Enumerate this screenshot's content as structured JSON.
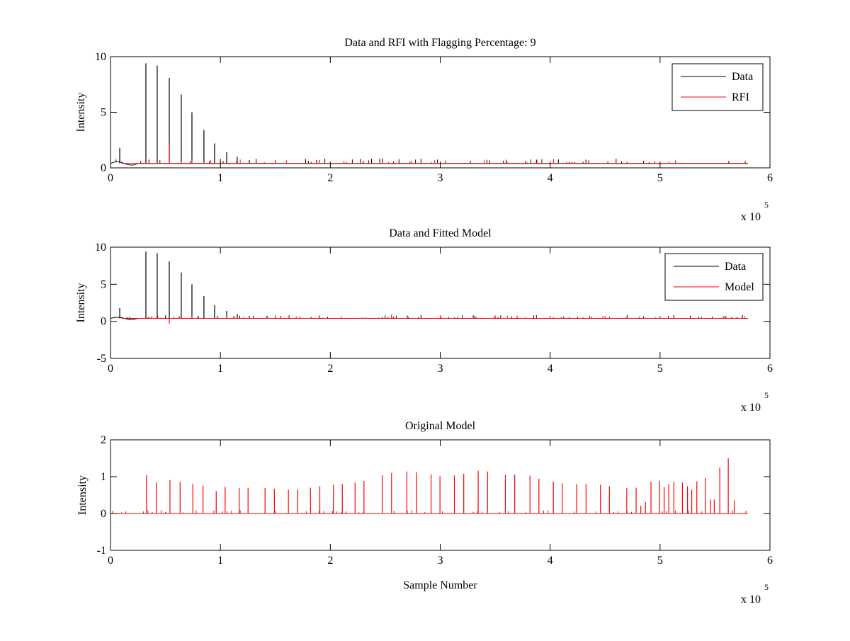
{
  "chart_data": [
    {
      "type": "line",
      "title": "Data and RFI with Flagging Percentage: 9",
      "xlabel": "",
      "ylabel": "Intensity",
      "xlim": [
        0,
        600000
      ],
      "ylim": [
        0,
        10
      ],
      "xticks": [
        "0",
        "1",
        "2",
        "3",
        "4",
        "5",
        "6"
      ],
      "yticks": [
        "0",
        "5",
        "10"
      ],
      "ytick_values": [
        0,
        5,
        10
      ],
      "x_multiplier": "x 10",
      "x_multiplier_exp": "5",
      "legend": {
        "placement": "top-right",
        "entries": [
          {
            "label": "Data",
            "color": "#000000"
          },
          {
            "label": "RFI",
            "color": "#ff0000"
          }
        ]
      },
      "baseline": 0.4,
      "x_end": 580000,
      "series": [
        {
          "name": "Data",
          "color": "#000000",
          "spikes": [
            [
              8400,
              1.8
            ],
            [
              32200,
              9.4
            ],
            [
              42500,
              9.2
            ],
            [
              53500,
              8.1
            ],
            [
              64400,
              6.6
            ],
            [
              74100,
              5.0
            ],
            [
              85000,
              3.4
            ],
            [
              94700,
              2.2
            ],
            [
              105700,
              1.4
            ],
            [
              115300,
              1.0
            ],
            [
              126300,
              0.7
            ]
          ]
        },
        {
          "name": "RFI",
          "color": "#ff0000",
          "spikes": [
            [
              53500,
              2.2
            ],
            [
              64400,
              0.6
            ],
            [
              74100,
              0.8
            ],
            [
              150000,
              0.7
            ],
            [
              140000,
              0.5
            ]
          ]
        }
      ]
    },
    {
      "type": "line",
      "title": "Data and Fitted Model",
      "xlabel": "",
      "ylabel": "Intensity",
      "xlim": [
        0,
        600000
      ],
      "ylim": [
        -5,
        10
      ],
      "xticks": [
        "0",
        "1",
        "2",
        "3",
        "4",
        "5",
        "6"
      ],
      "yticks": [
        "-5",
        "0",
        "5",
        "10"
      ],
      "ytick_values": [
        -5,
        0,
        5,
        10
      ],
      "x_multiplier": "x 10",
      "x_multiplier_exp": "5",
      "legend": {
        "placement": "top-right",
        "entries": [
          {
            "label": "Data",
            "color": "#000000"
          },
          {
            "label": "Model",
            "color": "#ff0000"
          }
        ]
      },
      "baseline": 0.4,
      "x_end": 580000,
      "series": [
        {
          "name": "Data",
          "color": "#000000",
          "spikes": [
            [
              8400,
              1.8
            ],
            [
              32200,
              9.4
            ],
            [
              42500,
              9.2
            ],
            [
              53500,
              8.1
            ],
            [
              64400,
              6.6
            ],
            [
              74100,
              5.0
            ],
            [
              85000,
              3.4
            ],
            [
              94700,
              2.2
            ],
            [
              105700,
              1.4
            ],
            [
              115300,
              1.0
            ],
            [
              126300,
              0.7
            ]
          ]
        },
        {
          "name": "Model",
          "color": "#ff0000",
          "spikes": [
            [
              53500,
              -0.3
            ],
            [
              74100,
              0.8
            ],
            [
              105700,
              0.8
            ],
            [
              150000,
              0.8
            ],
            [
              190000,
              0.8
            ],
            [
              255700,
              0.9
            ],
            [
              300000,
              0.8
            ],
            [
              350000,
              0.8
            ],
            [
              400000,
              0.7
            ],
            [
              450000,
              0.7
            ],
            [
              500000,
              0.7
            ],
            [
              560000,
              0.7
            ]
          ]
        }
      ]
    },
    {
      "type": "line",
      "title": "Original Model",
      "xlabel": "Sample Number",
      "ylabel": "Intensity",
      "xlim": [
        0,
        600000
      ],
      "ylim": [
        -1,
        2
      ],
      "xticks": [
        "0",
        "1",
        "2",
        "3",
        "4",
        "5",
        "6"
      ],
      "yticks": [
        "-1",
        "0",
        "1",
        "2"
      ],
      "ytick_values": [
        -1,
        0,
        1,
        2
      ],
      "x_multiplier": "x 10",
      "x_multiplier_exp": "5",
      "baseline": 0,
      "x_end": 580000,
      "series": [
        {
          "name": "Model",
          "color": "#ff0000",
          "spikes": [
            [
              32800,
              1.04
            ],
            [
              41700,
              0.84
            ],
            [
              54100,
              0.91
            ],
            [
              63350,
              0.86
            ],
            [
              74940,
              0.8
            ],
            [
              84210,
              0.76
            ],
            [
              96190,
              0.61
            ],
            [
              104300,
              0.72
            ],
            [
              117050,
              0.69
            ],
            [
              125160,
              0.7
            ],
            [
              140610,
              0.69
            ],
            [
              149110,
              0.67
            ],
            [
              161860,
              0.65
            ],
            [
              170360,
              0.65
            ],
            [
              181950,
              0.7
            ],
            [
              190450,
              0.74
            ],
            [
              202810,
              0.78
            ],
            [
              210920,
              0.8
            ],
            [
              222510,
              0.84
            ],
            [
              230620,
              0.89
            ],
            [
              247230,
              1.04
            ],
            [
              255730,
              1.1
            ],
            [
              269640,
              1.14
            ],
            [
              278520,
              1.12
            ],
            [
              291660,
              1.06
            ],
            [
              299770,
              1.01
            ],
            [
              312900,
              1.03
            ],
            [
              321400,
              1.08
            ],
            [
              334530,
              1.16
            ],
            [
              343040,
              1.14
            ],
            [
              359260,
              1.06
            ],
            [
              367760,
              1.06
            ],
            [
              381670,
              1.03
            ],
            [
              389780,
              0.95
            ],
            [
              402910,
              0.86
            ],
            [
              411020,
              0.82
            ],
            [
              424150,
              0.8
            ],
            [
              432650,
              0.8
            ],
            [
              445780,
              0.78
            ],
            [
              453900,
              0.74
            ],
            [
              469730,
              0.69
            ],
            [
              478230,
              0.7
            ],
            [
              482480,
              0.21
            ],
            [
              486730,
              0.31
            ],
            [
              491750,
              0.86
            ],
            [
              499480,
              0.89
            ],
            [
              503730,
              0.72
            ],
            [
              507970,
              0.8
            ],
            [
              512610,
              0.86
            ],
            [
              520340,
              0.84
            ],
            [
              524970,
              0.74
            ],
            [
              528840,
              0.65
            ],
            [
              533470,
              0.87
            ],
            [
              541190,
              0.97
            ],
            [
              545830,
              0.38
            ],
            [
              549310,
              0.38
            ],
            [
              554330,
              1.25
            ],
            [
              562060,
              1.5
            ],
            [
              567470,
              0.36
            ]
          ]
        }
      ]
    }
  ]
}
